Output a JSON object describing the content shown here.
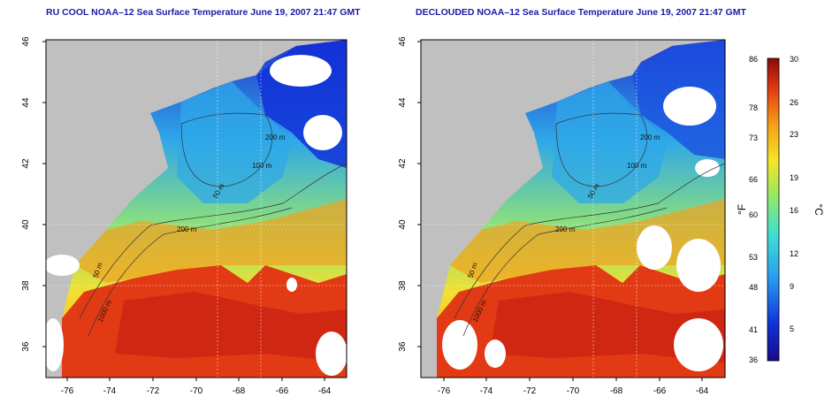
{
  "panels": [
    {
      "id": "left",
      "title": "RU COOL NOAA–12 Sea Surface Temperature June 19, 2007 21:47 GMT",
      "x_ticks": [
        "-76",
        "-74",
        "-72",
        "-70",
        "-68",
        "-66",
        "-64"
      ],
      "y_ticks": [
        "46",
        "44",
        "42",
        "40",
        "38",
        "36"
      ],
      "contour_labels": [
        "200 m",
        "100 m",
        "50 m",
        "50 m",
        "200 m",
        "1000 m"
      ]
    },
    {
      "id": "right",
      "title": "DECLOUDED NOAA–12 Sea Surface Temperature June 19, 2007 21:47 GMT",
      "x_ticks": [
        "-76",
        "-74",
        "-72",
        "-70",
        "-68",
        "-66",
        "-64"
      ],
      "y_ticks": [
        "46",
        "44",
        "42",
        "40",
        "38",
        "36"
      ],
      "contour_labels": [
        "200 m",
        "100 m",
        "50 m",
        "50 m",
        "200 m",
        "1000 m"
      ]
    }
  ],
  "colorbar": {
    "fahrenheit_ticks": [
      "86",
      "78",
      "73",
      "66",
      "60",
      "53",
      "48",
      "41",
      "36"
    ],
    "celsius_ticks": [
      "30",
      "26",
      "23",
      "19",
      "16",
      "12",
      "9",
      "5"
    ],
    "unit_f": "°F",
    "unit_c": "°C"
  },
  "colors": {
    "land": "#c0c0c0",
    "cloud": "#ffffff",
    "warm": "#e23a14",
    "cold": "#1030d8",
    "title": "#1a1aa8"
  }
}
